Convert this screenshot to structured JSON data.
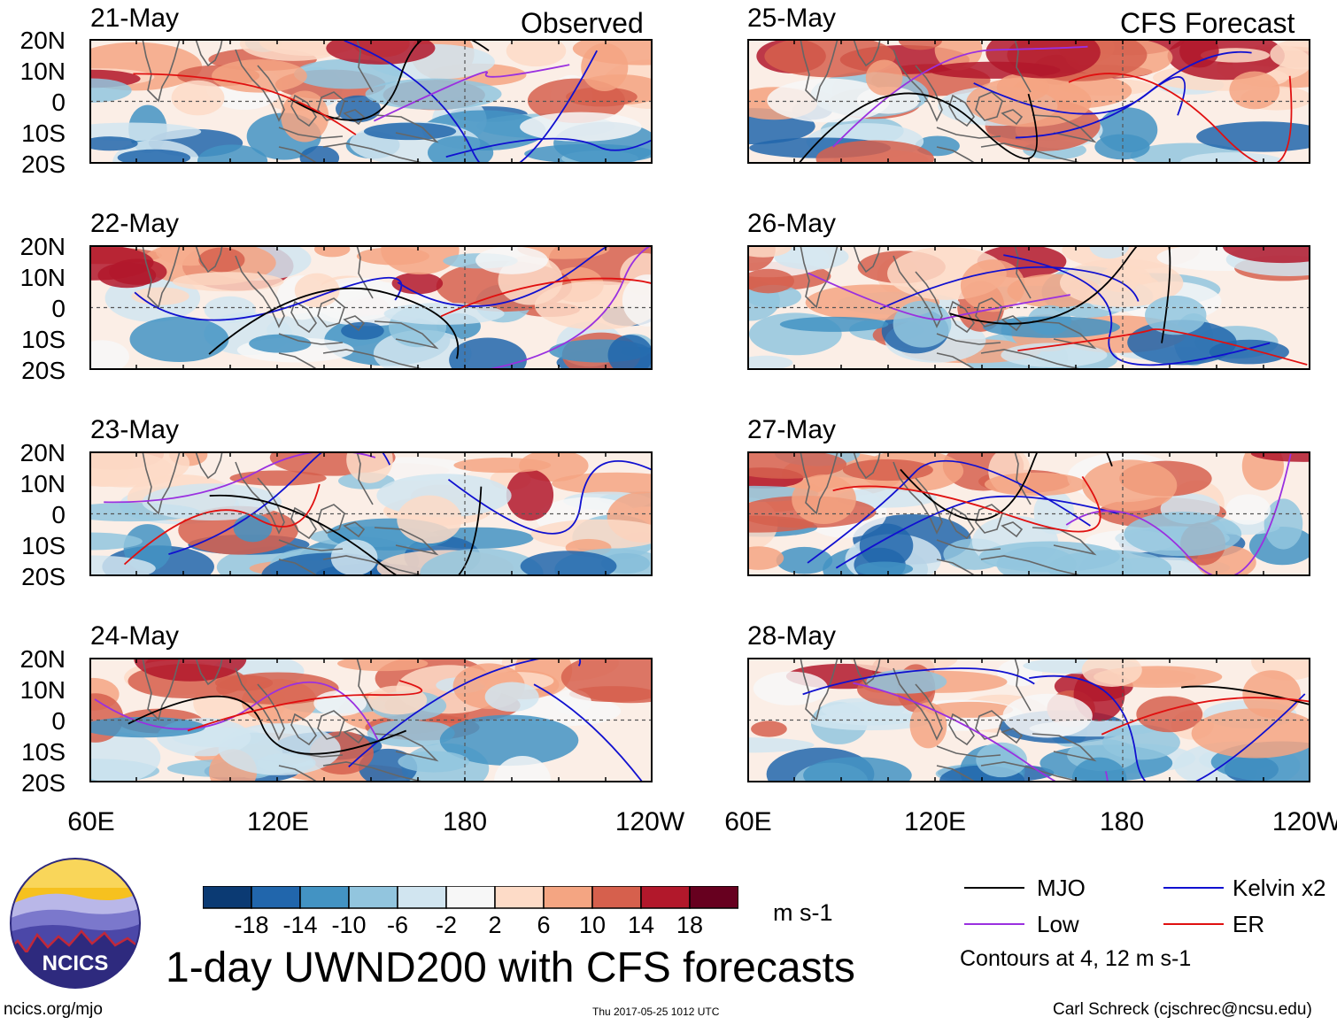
{
  "panels_left": {
    "tag": "Observed",
    "dates": [
      "21-May",
      "22-May",
      "23-May",
      "24-May"
    ]
  },
  "panels_right": {
    "tag": "CFS Forecast",
    "dates": [
      "25-May",
      "26-May",
      "27-May",
      "28-May"
    ]
  },
  "y_axis": [
    "20N",
    "10N",
    "0",
    "10S",
    "20S"
  ],
  "x_axis": [
    "60E",
    "120E",
    "180",
    "120W"
  ],
  "colorbar": {
    "colors": [
      "#0b3a73",
      "#2166ac",
      "#4393c3",
      "#92c5de",
      "#d1e5f0",
      "#f7f7f7",
      "#fddbc7",
      "#f4a582",
      "#d6604d",
      "#b2182b",
      "#67001f"
    ],
    "labels": [
      "-18",
      "-14",
      "-10",
      "-6",
      "-2",
      "2",
      "6",
      "10",
      "14",
      "18"
    ],
    "unit": "m s-1"
  },
  "title": "1-day UWND200 with CFS forecasts",
  "legend": {
    "items": [
      {
        "label": "MJO",
        "color": "#000000"
      },
      {
        "label": "Kelvin x2",
        "color": "#1010d0"
      },
      {
        "label": "Low",
        "color": "#9a30e0"
      },
      {
        "label": "ER",
        "color": "#e01010"
      }
    ],
    "note": "Contours at 4, 12 m s-1"
  },
  "logo": {
    "text": "NCICS"
  },
  "footer": {
    "url": "ncics.org/mjo",
    "timestamp": "Thu 2017-05-25 1012 UTC",
    "credit": "Carl Schreck (cjschrec@ncsu.edu)"
  }
}
